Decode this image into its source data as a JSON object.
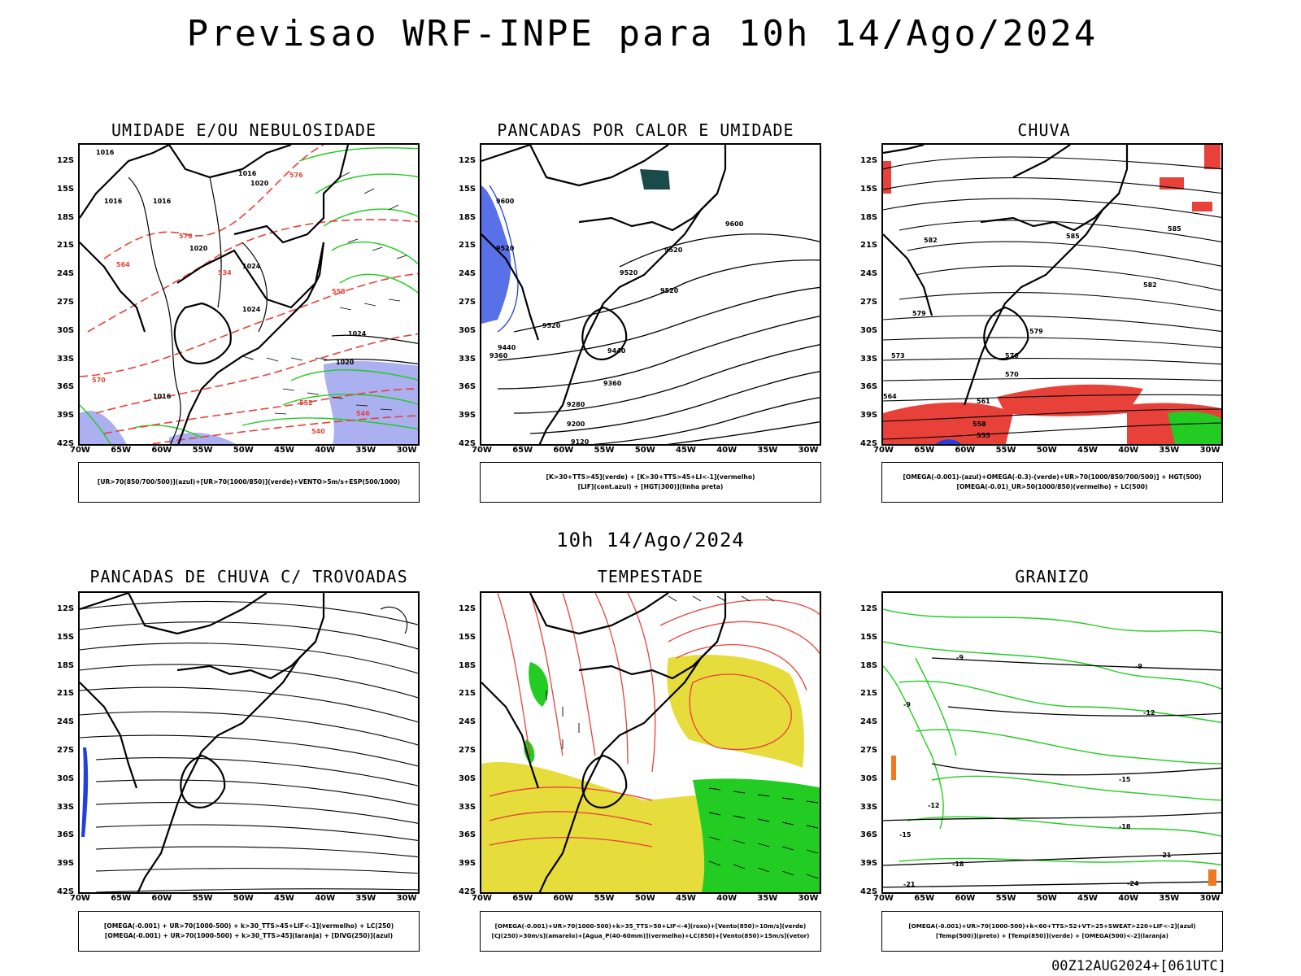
{
  "title": "Previsao WRF-INPE  para 10h 14/Ago/2024",
  "middle_title": "10h 14/Ago/2024",
  "footer": "00Z12AUG2024+[061UTC]",
  "lat_ticks": [
    "12S",
    "15S",
    "18S",
    "21S",
    "24S",
    "27S",
    "30S",
    "33S",
    "36S",
    "39S",
    "42S"
  ],
  "lon_ticks": [
    "70W",
    "65W",
    "60W",
    "55W",
    "50W",
    "45W",
    "40W",
    "35W",
    "30W"
  ],
  "colors": {
    "red": "#e8413a",
    "green": "#22cc22",
    "blue": "#2040e0",
    "lavender": "#aab0f0",
    "yellow": "#e6dc3c",
    "orange": "#f07820",
    "teal": "#1a4a4a"
  },
  "panels": [
    {
      "title": "UMIDADE E/OU NEBULOSIDADE",
      "legend": [
        "[UR>70(850/700/500)](azul)+[UR>70(1000/850)](verde)+VENTO>5m/s+ESP(500/1000)"
      ],
      "labels": [
        "1016",
        "1016",
        "1016",
        "1016",
        "1020",
        "1020",
        "1024",
        "1024",
        "1016",
        "1024",
        "1020",
        "570",
        "576",
        "558",
        "552",
        "546",
        "540",
        "534",
        "564",
        "570",
        "564",
        "558",
        "552"
      ]
    },
    {
      "title": "PANCADAS POR CALOR E UMIDADE",
      "legend": [
        "[K>30+TTS>45](verde) + [K>30+TTS>45+LI<-1](vermelho)",
        "[LIF](cont.azul) + [HGT(300)](linha preta)"
      ],
      "labels": [
        "9600",
        "9600",
        "9520",
        "9520",
        "9520",
        "9520",
        "9440",
        "9440",
        "9360",
        "9360",
        "9280",
        "9200",
        "9120",
        "9520"
      ]
    },
    {
      "title": "CHUVA",
      "legend": [
        "[OMEGA(-0.001)-(azul)+OMEGA(-0.3)-(verde)+UR>70(1000/850/700/500)] + HGT(500)",
        "[OMEGA(-0.01)_UR>50(1000/850)(vermelho) + LC(500)"
      ],
      "labels": [
        "585",
        "582",
        "585",
        "582",
        "579",
        "579",
        "576",
        "573",
        "570",
        "564",
        "561",
        "558",
        "555"
      ]
    },
    {
      "title": "PANCADAS DE CHUVA C/ TROVOADAS",
      "legend": [
        "[OMEGA(-0.001) + UR>70(1000-500) + k>30_TTS>45+LIF<-1](vermelho) + LC(250)",
        "[OMEGA(-0.001) + UR>70(1000-500) + k>30_TTS>45](laranja) + [DIVG(250)](azul)"
      ],
      "labels": []
    },
    {
      "title": "TEMPESTADE",
      "legend": [
        "[OMEGA(-0.001)+UR>70(1000-500)+k>35_TTS>50+LIF<-4](roxo)+[Vento(850)>10m/s](verde)",
        "[CJ(250)>30m/s](amarelo)+[Agua_P(40-60mm)](vermelho)+LC(850)+[Vento(850)>15m/s](vetor)"
      ],
      "labels": []
    },
    {
      "title": "GRANIZO",
      "legend": [
        "[OMEGA(-0.001)+UR>70(1000-500)+k<60+TTS>52+VT>25+SWEAT>220+LIF<-2](azul)",
        "[Temp(500)](preto) + [Temp(850)](verde) + [OMEGA(500)<-2](laranja)"
      ],
      "labels": [
        "-9",
        "-9",
        "-12",
        "-12",
        "-15",
        "-15",
        "-18",
        "-18",
        "-21",
        "-21",
        "-24",
        "-9"
      ]
    }
  ]
}
